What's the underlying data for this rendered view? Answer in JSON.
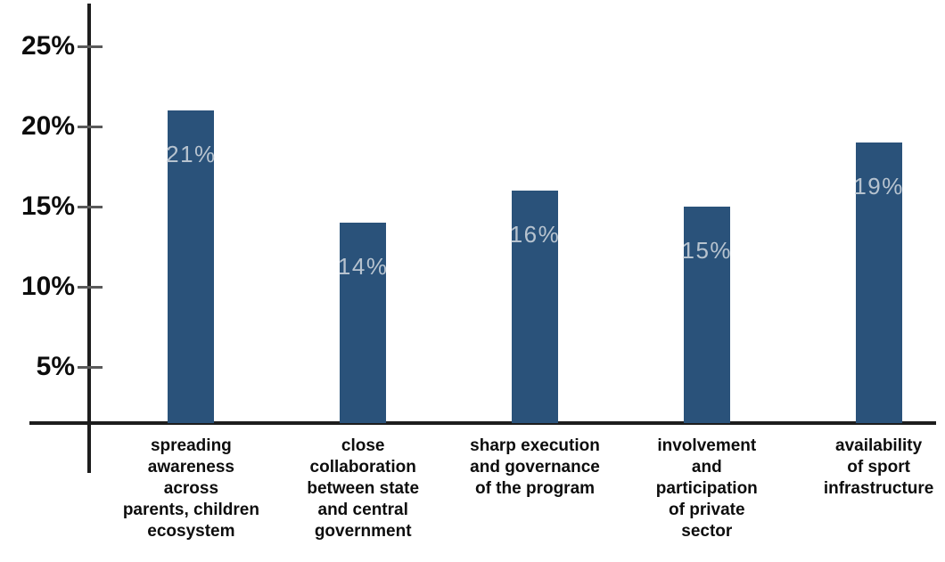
{
  "chart_data": {
    "type": "bar",
    "title": "",
    "xlabel": "",
    "ylabel": "",
    "categories": [
      "spreading awareness across parents, children ecosystem",
      "close collaboration between state and central government",
      "sharp execution and governance of the program",
      "involvement and participation of private sector",
      "availability of sport infrastructure"
    ],
    "category_lines": [
      [
        "spreading",
        "awareness",
        "across",
        "parents, children",
        "ecosystem"
      ],
      [
        "close",
        "collaboration",
        "between state",
        "and central",
        "government"
      ],
      [
        "sharp execution",
        "and governance",
        "of the program"
      ],
      [
        "involvement",
        "and",
        "participation",
        "of private",
        "sector"
      ],
      [
        "availability",
        "of sport",
        "infrastructure"
      ]
    ],
    "values": [
      21,
      14,
      16,
      15,
      19
    ],
    "bar_labels": [
      "21%",
      "14%",
      "16%",
      "15%",
      "19%"
    ],
    "yticks": [
      25,
      20,
      15,
      10,
      5
    ],
    "ytick_labels": [
      "25%",
      "20%",
      "15%",
      "10%",
      "5%"
    ],
    "ylim": [
      0,
      27
    ],
    "grid": false,
    "legend": false,
    "colors": {
      "bar": "#2a527a",
      "bar_label": "#b7c3cf",
      "axis": "#1d1d1d",
      "tick": "#5a5a5a",
      "text": "#0d0d0d",
      "background": "#ffffff"
    }
  }
}
